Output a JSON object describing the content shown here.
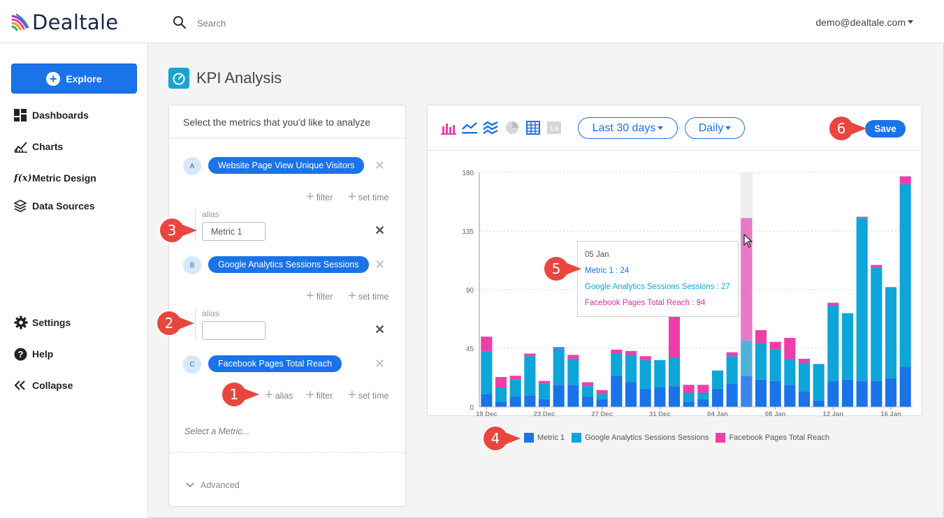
{
  "app": {
    "logo_text": "Dealtale"
  },
  "header": {
    "search_placeholder": "Search",
    "user_email": "demo@dealtale.com"
  },
  "sidebar": {
    "explore_label": "Explore",
    "items": [
      {
        "label": "Dashboards",
        "icon": "dashboard-icon"
      },
      {
        "label": "Charts",
        "icon": "chart-line-icon"
      },
      {
        "label": "Metric Design",
        "icon": "function-icon"
      },
      {
        "label": "Data Sources",
        "icon": "layers-icon"
      },
      {
        "label": "Settings",
        "icon": "gear-icon"
      },
      {
        "label": "Help",
        "icon": "help-icon"
      },
      {
        "label": "Collapse",
        "icon": "collapse-icon"
      }
    ]
  },
  "page": {
    "title": "KPI Analysis"
  },
  "metrics_panel": {
    "heading": "Select the metrics that you'd like to analyze",
    "metrics": [
      {
        "letter": "A",
        "name": "Website Page View Unique Visitors",
        "alias_label": "alias",
        "alias_value": "Metric 1"
      },
      {
        "letter": "B",
        "name": "Google Analytics Sessions Sessions",
        "alias_label": "alias",
        "alias_value": ""
      },
      {
        "letter": "C",
        "name": "Facebook Pages Total Reach"
      }
    ],
    "opt_alias": "alias",
    "opt_filter": "filter",
    "opt_set_time": "set time",
    "remove_glyph": "✕",
    "select_metric_placeholder": "Select a Metric...",
    "advanced_label": "Advanced"
  },
  "chart_panel": {
    "date_range": "Last 30 days",
    "granularity": "Daily",
    "save_label": "Save",
    "tool_16_label": "1.6"
  },
  "tooltip": {
    "date": "05 Jan",
    "lines": [
      "Metric 1 : 24",
      "Google Analytics Sessions Sessions : 27",
      "Facebook Pages Total Reach : 94"
    ]
  },
  "callouts": [
    "1",
    "2",
    "3",
    "4",
    "5",
    "6"
  ],
  "colors": {
    "accent": "#1a73e8",
    "metric1": "#1a73e8",
    "ga_sessions": "#0ea5d8",
    "fb_reach": "#ee3fa8",
    "callout": "#e8463f"
  },
  "chart_data": {
    "type": "bar",
    "stacked": true,
    "x_tick_labels": [
      "19 Dec",
      "23 Dec",
      "27 Dec",
      "31 Dec",
      "04 Jan",
      "08 Jan",
      "12 Jan",
      "16 Jan"
    ],
    "y_ticks": [
      0,
      45,
      90,
      135,
      180
    ],
    "ylim": [
      0,
      180
    ],
    "grid": true,
    "legend_position": "bottom-center",
    "highlighted_day": 18,
    "series": [
      {
        "name": "Metric 1",
        "color": "#1a73e8",
        "values": [
          10,
          4,
          8,
          9,
          6,
          17,
          17,
          8,
          6,
          24,
          19,
          14,
          15,
          16,
          4,
          6,
          14,
          18,
          24,
          21,
          20,
          17,
          12,
          5,
          20,
          21,
          20,
          20,
          22,
          31
        ]
      },
      {
        "name": "Google Analytics Sessions Sessions",
        "color": "#0ea5d8",
        "values": [
          33,
          11,
          13,
          30,
          12,
          28,
          20,
          8,
          4,
          17,
          21,
          22,
          21,
          22,
          7,
          5,
          14,
          21,
          27,
          28,
          24,
          20,
          22,
          28,
          58,
          51,
          125,
          87,
          70,
          140
        ]
      },
      {
        "name": "Facebook Pages Total Reach",
        "color": "#ee3fa8",
        "values": [
          11,
          8,
          3,
          2,
          2,
          1,
          3,
          3,
          3,
          3,
          3,
          3,
          0,
          34,
          6,
          6,
          0,
          3,
          94,
          10,
          6,
          16,
          3,
          0,
          2,
          0,
          1,
          2,
          0,
          6
        ]
      }
    ]
  }
}
